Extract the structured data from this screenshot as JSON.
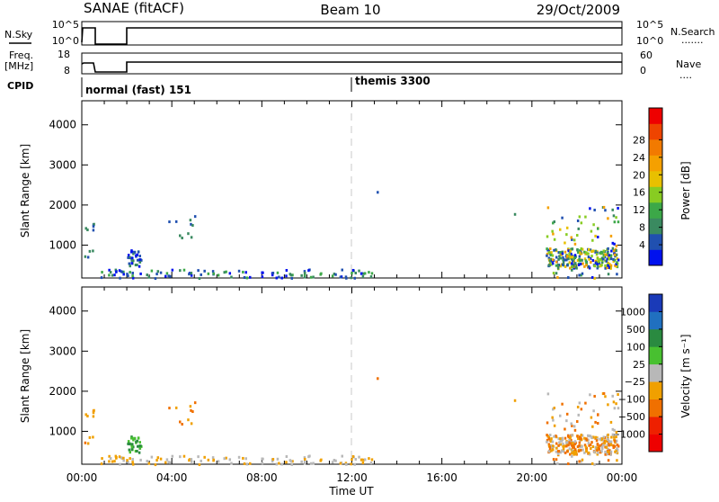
{
  "header": {
    "site": "SANAE (fitACF)",
    "beam": "Beam 10",
    "date": "29/Oct/2009"
  },
  "strip_panels": {
    "nsky": {
      "label": "N.Sky",
      "tick_top": "10^5",
      "tick_bottom": "10^0",
      "right_label": "N.Search",
      "right_tick_top": "10^5",
      "right_tick_bottom": "10^0",
      "right_marker": "......."
    },
    "freq": {
      "label_line1": "Freq.",
      "label_line2": "[MHz]",
      "tick_top": "18",
      "tick_bottom": "8",
      "right_label": "Nave",
      "right_tick_top": "60",
      "right_tick_bottom": "0",
      "right_marker": "...."
    },
    "cpid": {
      "label": "CPID",
      "mode1": "normal (fast) 151",
      "mode2": "themis 3300"
    }
  },
  "chart_data": [
    {
      "type": "heatmap",
      "title": "",
      "panel": "power",
      "xlabel": "",
      "ylabel": "Slant Range [km]",
      "xlim": [
        0,
        24
      ],
      "ylim": [
        180,
        4600
      ],
      "yticks": [
        "1000",
        "2000",
        "3000",
        "4000"
      ],
      "colorbar": {
        "label": "Power [dB]",
        "tick_labels": [
          "4",
          "8",
          "12",
          "16",
          "20",
          "24",
          "28"
        ],
        "colors": [
          "#0011ee",
          "#2050b0",
          "#3a8a60",
          "#3ca848",
          "#88cc22",
          "#e8c000",
          "#f5a000",
          "#f27a00",
          "#ee4400",
          "#ee0000"
        ]
      },
      "scatter_groups": [
        {
          "name": "early_echoes",
          "time_range": [
            0.1,
            0.5
          ],
          "range_km": [
            700,
            1600
          ]
        },
        {
          "name": "cluster_2h",
          "time_range": [
            2.0,
            2.6
          ],
          "range_km": [
            500,
            1000
          ]
        },
        {
          "name": "cluster_4h",
          "time_range": [
            3.4,
            5.0
          ],
          "range_km": [
            1100,
            1800
          ]
        },
        {
          "name": "near_range",
          "time_range": [
            0.8,
            13.0
          ],
          "range_km": [
            180,
            500
          ]
        },
        {
          "name": "isolated",
          "time": 13.1,
          "range_km": 2350
        },
        {
          "name": "isolated_19h",
          "time": 19.2,
          "range_km": 1800
        },
        {
          "name": "main_cluster",
          "time_range": [
            20.6,
            23.8
          ],
          "range_km": [
            200,
            2000
          ]
        }
      ]
    },
    {
      "type": "heatmap",
      "title": "",
      "panel": "velocity",
      "xlabel": "Time UT",
      "ylabel": "Slant Range [km]",
      "xlim": [
        0,
        24
      ],
      "ylim": [
        180,
        4600
      ],
      "xticks": [
        "00:00",
        "04:00",
        "08:00",
        "12:00",
        "16:00",
        "20:00",
        "00:00"
      ],
      "yticks": [
        "1000",
        "2000",
        "3000",
        "4000"
      ],
      "colorbar": {
        "label": "Velocity [m s⁻¹]",
        "tick_labels": [
          "1000",
          "500",
          "100",
          "25",
          "−25",
          "−100",
          "−500",
          "−1000"
        ],
        "colors": [
          "#1a3ab8",
          "#2070c0",
          "#2a8a40",
          "#48c030",
          "#b8b8b8",
          "#f0a000",
          "#f07000",
          "#ee2000",
          "#ee0000"
        ]
      },
      "scatter_groups": [
        {
          "name": "early_echoes",
          "time_range": [
            0.1,
            0.5
          ],
          "range_km": [
            700,
            1600
          ]
        },
        {
          "name": "cluster_2h",
          "time_range": [
            2.0,
            2.6
          ],
          "range_km": [
            500,
            1000
          ]
        },
        {
          "name": "cluster_4h",
          "time_range": [
            3.4,
            5.0
          ],
          "range_km": [
            1100,
            1800
          ]
        },
        {
          "name": "near_range",
          "time_range": [
            0.8,
            13.0
          ],
          "range_km": [
            180,
            500
          ]
        },
        {
          "name": "isolated",
          "time": 13.1,
          "range_km": 2350
        },
        {
          "name": "isolated_19h",
          "time": 19.2,
          "range_km": 1800
        },
        {
          "name": "main_cluster",
          "time_range": [
            20.6,
            23.8
          ],
          "range_km": [
            200,
            2000
          ]
        }
      ]
    }
  ]
}
